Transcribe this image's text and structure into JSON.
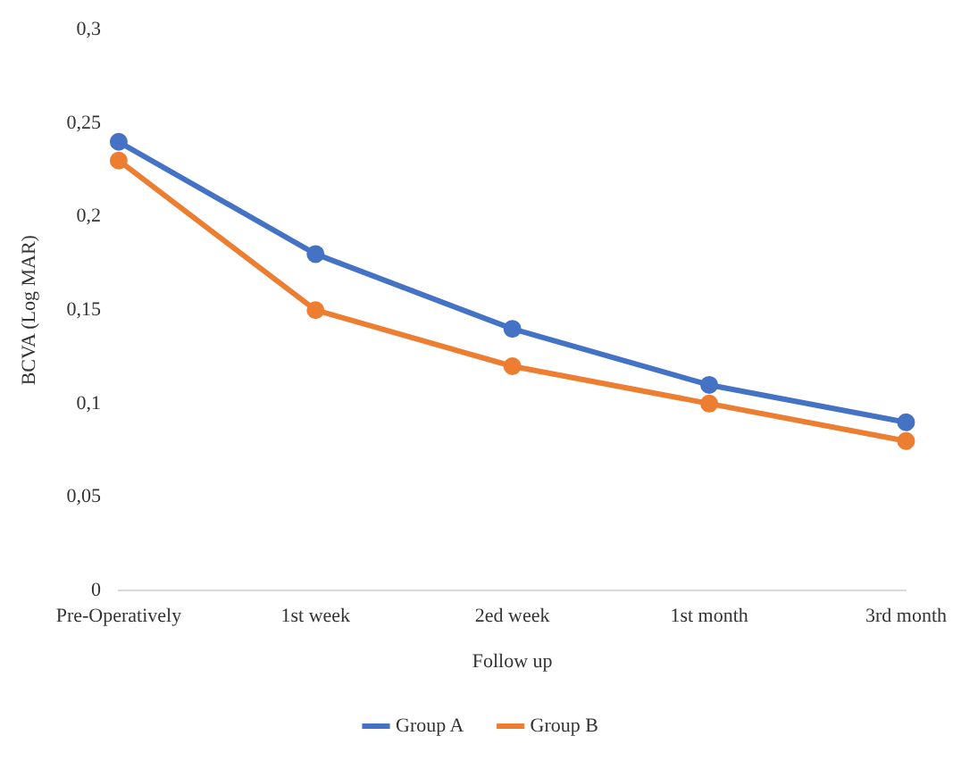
{
  "chart_data": {
    "type": "line",
    "xlabel": "Follow up",
    "ylabel": "BCVA (Log MAR)",
    "categories": [
      "Pre-Operatively",
      "1st week",
      "2ed week",
      "1st month",
      "3rd month"
    ],
    "series": [
      {
        "name": "Group A",
        "color": "#4472c4",
        "values": [
          0.24,
          0.18,
          0.14,
          0.11,
          0.09
        ]
      },
      {
        "name": "Group B",
        "color": "#ed7d31",
        "values": [
          0.23,
          0.15,
          0.12,
          0.1,
          0.08
        ]
      }
    ],
    "ylim": [
      0,
      0.3
    ],
    "yticks": [
      {
        "value": 0,
        "label": "0"
      },
      {
        "value": 0.05,
        "label": "0,05"
      },
      {
        "value": 0.1,
        "label": "0,1"
      },
      {
        "value": 0.15,
        "label": "0,15"
      },
      {
        "value": 0.2,
        "label": "0,2"
      },
      {
        "value": 0.25,
        "label": "0,25"
      },
      {
        "value": 0.3,
        "label": "0,3"
      }
    ],
    "grid": false,
    "legend": "bottom",
    "marker": "circle",
    "line_style": "solid"
  }
}
